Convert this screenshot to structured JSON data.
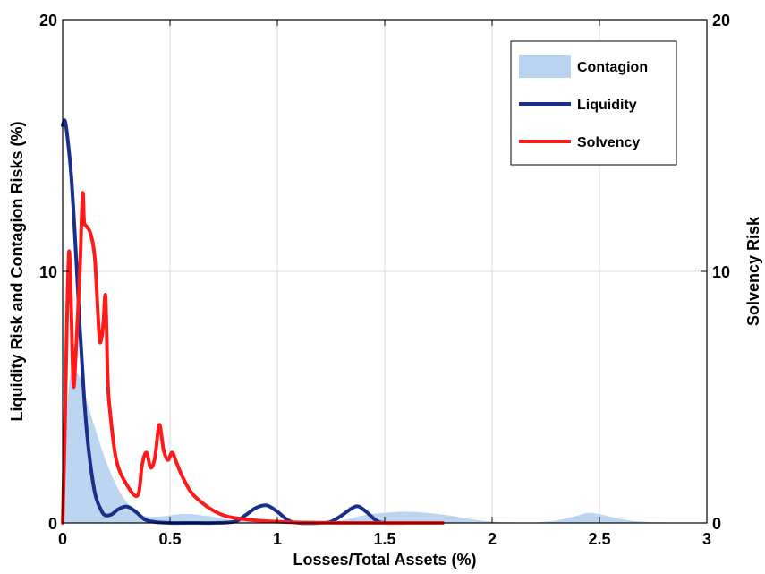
{
  "chart_data": {
    "type": "area",
    "xlabel": "Losses/Total Assets (%)",
    "ylabel_left": "Liquidity Risk and Contagion Risks (%)",
    "ylabel_right": "Solvency Risk",
    "xlim": [
      0,
      3
    ],
    "ylim_left": [
      0,
      20
    ],
    "ylim_right": [
      0,
      20
    ],
    "x_ticks": [
      "0",
      "0.5",
      "1",
      "1.5",
      "2",
      "2.5",
      "3"
    ],
    "y_ticks_left": [
      "0",
      "10",
      "20"
    ],
    "y_ticks_right": [
      "0",
      "10",
      "20"
    ],
    "grid": true,
    "legend_position": "top-right",
    "colors": {
      "contagion": "#b8d3f0",
      "liquidity": "#1a2f8c",
      "solvency": "#ff1a1a"
    },
    "series": [
      {
        "name": "Contagion",
        "kind": "area",
        "x": [
          0,
          0.01,
          0.03,
          0.05,
          0.08,
          0.1,
          0.15,
          0.2,
          0.25,
          0.3,
          0.35,
          0.4,
          0.45,
          0.5,
          0.55,
          0.6,
          0.65,
          0.7,
          0.75,
          0.8,
          0.9,
          1.0,
          1.1,
          1.2,
          1.3,
          1.4,
          1.5,
          1.6,
          1.7,
          1.8,
          1.9,
          2.0,
          2.1,
          2.2,
          2.3,
          2.4,
          2.45,
          2.5,
          2.6,
          2.7,
          2.8,
          2.9,
          3.0
        ],
        "values": [
          0,
          2.5,
          5.5,
          6.0,
          5.8,
          5.2,
          3.8,
          2.5,
          1.5,
          0.8,
          0.4,
          0.25,
          0.25,
          0.3,
          0.35,
          0.35,
          0.3,
          0.25,
          0.15,
          0.1,
          0.05,
          0.05,
          0.05,
          0.05,
          0.1,
          0.3,
          0.4,
          0.45,
          0.4,
          0.3,
          0.15,
          0.05,
          0.02,
          0.02,
          0.1,
          0.3,
          0.4,
          0.35,
          0.15,
          0.05,
          0.02,
          0.01,
          0
        ]
      },
      {
        "name": "Liquidity",
        "kind": "line",
        "x": [
          0,
          0.01,
          0.02,
          0.04,
          0.06,
          0.08,
          0.1,
          0.12,
          0.15,
          0.18,
          0.2,
          0.23,
          0.26,
          0.3,
          0.34,
          0.38,
          0.42,
          0.5,
          0.6,
          0.7,
          0.8,
          0.85,
          0.9,
          0.95,
          1.0,
          1.05,
          1.1,
          1.2,
          1.25,
          1.3,
          1.35,
          1.38,
          1.42,
          1.46,
          1.5,
          1.6,
          1.7,
          1.75
        ],
        "values": [
          15.8,
          16.0,
          15.5,
          13.8,
          11.0,
          7.8,
          5.0,
          3.0,
          1.2,
          0.5,
          0.3,
          0.35,
          0.55,
          0.65,
          0.45,
          0.15,
          0.05,
          0.0,
          0.0,
          0.0,
          0.05,
          0.3,
          0.6,
          0.7,
          0.45,
          0.1,
          0.0,
          0.0,
          0.05,
          0.3,
          0.6,
          0.65,
          0.4,
          0.1,
          0.0,
          0.0,
          0.0,
          0.0
        ]
      },
      {
        "name": "Solvency",
        "kind": "line",
        "axis": "right",
        "x": [
          0,
          0.01,
          0.02,
          0.03,
          0.04,
          0.05,
          0.06,
          0.08,
          0.09,
          0.095,
          0.1,
          0.11,
          0.13,
          0.15,
          0.17,
          0.18,
          0.19,
          0.2,
          0.21,
          0.22,
          0.25,
          0.3,
          0.35,
          0.37,
          0.39,
          0.41,
          0.43,
          0.45,
          0.47,
          0.49,
          0.51,
          0.53,
          0.56,
          0.6,
          0.65,
          0.7,
          0.75,
          0.8,
          0.9,
          1.0,
          1.1,
          1.2,
          1.3,
          1.4,
          1.5,
          1.6,
          1.7,
          1.77
        ],
        "values": [
          0,
          3.5,
          8.0,
          10.8,
          8.5,
          5.5,
          6.5,
          10.0,
          12.5,
          13.1,
          12.0,
          11.8,
          11.5,
          10.5,
          7.5,
          7.3,
          8.0,
          9.0,
          5.8,
          4.5,
          2.5,
          1.5,
          1.1,
          2.3,
          2.8,
          2.2,
          2.6,
          3.9,
          2.9,
          2.5,
          2.8,
          2.4,
          1.8,
          1.2,
          0.8,
          0.5,
          0.3,
          0.2,
          0.1,
          0.05,
          0.02,
          0.01,
          0,
          0,
          0,
          0,
          0,
          0
        ]
      }
    ]
  }
}
